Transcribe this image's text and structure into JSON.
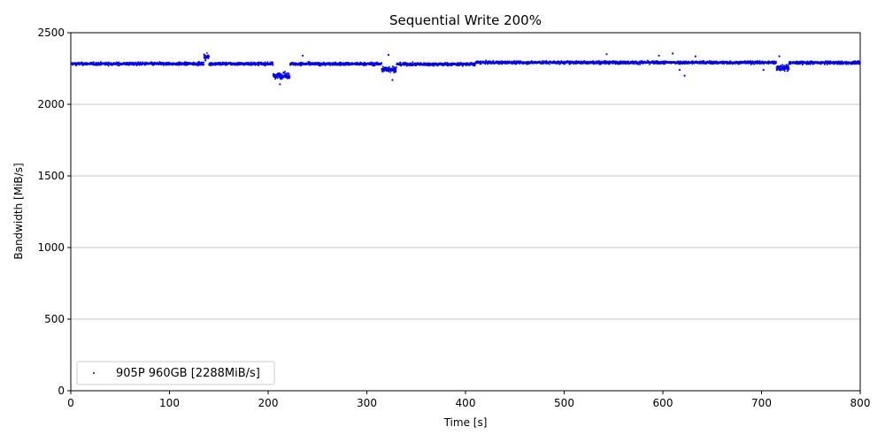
{
  "chart_data": {
    "type": "scatter",
    "title": "Sequential Write 200%",
    "xlabel": "Time [s]",
    "ylabel": "Bandwidth [MiB/s]",
    "xlim": [
      0,
      800
    ],
    "ylim": [
      0,
      2500
    ],
    "xticks": [
      0,
      100,
      200,
      300,
      400,
      500,
      600,
      700,
      800
    ],
    "yticks": [
      0,
      500,
      1000,
      1500,
      2000,
      2500
    ],
    "grid": "horizontal",
    "legend_position": "lower-left",
    "series": [
      {
        "name": "905P 960GB [2288MiB/s]",
        "color": "#0000ff",
        "marker": "dot",
        "baseline": 2285,
        "segments": [
          {
            "x_start": 0,
            "x_end": 135,
            "y_mean": 2283
          },
          {
            "x_start": 135,
            "x_end": 140,
            "y_mean": 2330
          },
          {
            "x_start": 140,
            "x_end": 205,
            "y_mean": 2283
          },
          {
            "x_start": 205,
            "x_end": 222,
            "y_mean": 2200
          },
          {
            "x_start": 222,
            "x_end": 315,
            "y_mean": 2282
          },
          {
            "x_start": 315,
            "x_end": 330,
            "y_mean": 2245
          },
          {
            "x_start": 330,
            "x_end": 410,
            "y_mean": 2280
          },
          {
            "x_start": 410,
            "x_end": 715,
            "y_mean": 2292
          },
          {
            "x_start": 715,
            "x_end": 728,
            "y_mean": 2255
          },
          {
            "x_start": 728,
            "x_end": 800,
            "y_mean": 2290
          }
        ],
        "outliers": [
          {
            "x": 212,
            "y": 2140
          },
          {
            "x": 235,
            "y": 2340
          },
          {
            "x": 322,
            "y": 2345
          },
          {
            "x": 326,
            "y": 2170
          },
          {
            "x": 543,
            "y": 2350
          },
          {
            "x": 596,
            "y": 2340
          },
          {
            "x": 610,
            "y": 2355
          },
          {
            "x": 617,
            "y": 2240
          },
          {
            "x": 622,
            "y": 2200
          },
          {
            "x": 633,
            "y": 2335
          },
          {
            "x": 702,
            "y": 2240
          },
          {
            "x": 718,
            "y": 2335
          }
        ]
      }
    ]
  }
}
